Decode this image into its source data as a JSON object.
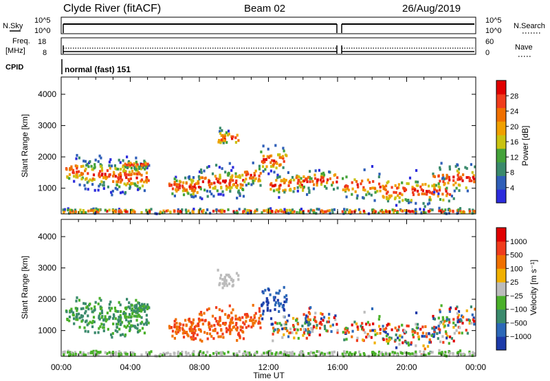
{
  "header": {
    "title": "Clyde River (fitACF)",
    "beam": "Beam 02",
    "date": "26/Aug/2019"
  },
  "top_panels": {
    "nsky": {
      "label": "N.Sky",
      "left_ticks": [
        "10^5",
        "10^0"
      ],
      "right_label": "N.Search",
      "right_ticks": [
        "10^5",
        "10^0"
      ]
    },
    "freq": {
      "label_line1": "Freq.",
      "label_line2": "[MHz]",
      "left_ticks": [
        "18",
        "8"
      ],
      "right_label": "Nave",
      "right_ticks": [
        "60",
        "0"
      ]
    },
    "cpid": {
      "label": "CPID",
      "value": "normal (fast) 151"
    }
  },
  "chart_data": [
    {
      "type": "heatmap",
      "name": "power",
      "ylabel": "Slant Range [km]",
      "xlabel": "Time UT",
      "x_ticks": [
        "00:00",
        "04:00",
        "08:00",
        "12:00",
        "16:00",
        "20:00",
        "00:00"
      ],
      "x_range_hours": [
        0,
        24
      ],
      "y_ticks": [
        1000,
        2000,
        3000,
        4000
      ],
      "ylim": [
        180,
        4550
      ],
      "colorbar": {
        "label": "Power [dB]",
        "ticks": [
          4,
          8,
          12,
          16,
          20,
          24,
          28
        ],
        "range": [
          0,
          32
        ],
        "colors": [
          "#2c2cdc",
          "#2f5fb8",
          "#3a8a6c",
          "#44a23a",
          "#c9c312",
          "#f0a000",
          "#f07000",
          "#f03c1c",
          "#e00000"
        ]
      },
      "data_gap_hours": 16.0
    },
    {
      "type": "heatmap",
      "name": "velocity",
      "ylabel": "Slant Range [km]",
      "xlabel": "Time UT",
      "x_ticks": [
        "00:00",
        "04:00",
        "08:00",
        "12:00",
        "16:00",
        "20:00",
        "00:00"
      ],
      "x_range_hours": [
        0,
        24
      ],
      "y_ticks": [
        1000,
        2000,
        3000,
        4000
      ],
      "ylim": [
        180,
        4550
      ],
      "colorbar": {
        "label": "Velocity [m s⁻¹]",
        "ticks": [
          "1000",
          "500",
          "100",
          "25",
          "−25",
          "−100",
          "−500",
          "−1000"
        ],
        "colors": [
          "#1c3aa8",
          "#2c68b8",
          "#3a8a6c",
          "#4ab02a",
          "#bcbcbc",
          "#f0b000",
          "#f07000",
          "#f03c1c",
          "#e00000"
        ]
      },
      "ground_scatter_color": "#c0c0c0",
      "data_gap_hours": 16.0
    }
  ],
  "x_axis_label": "Time UT"
}
